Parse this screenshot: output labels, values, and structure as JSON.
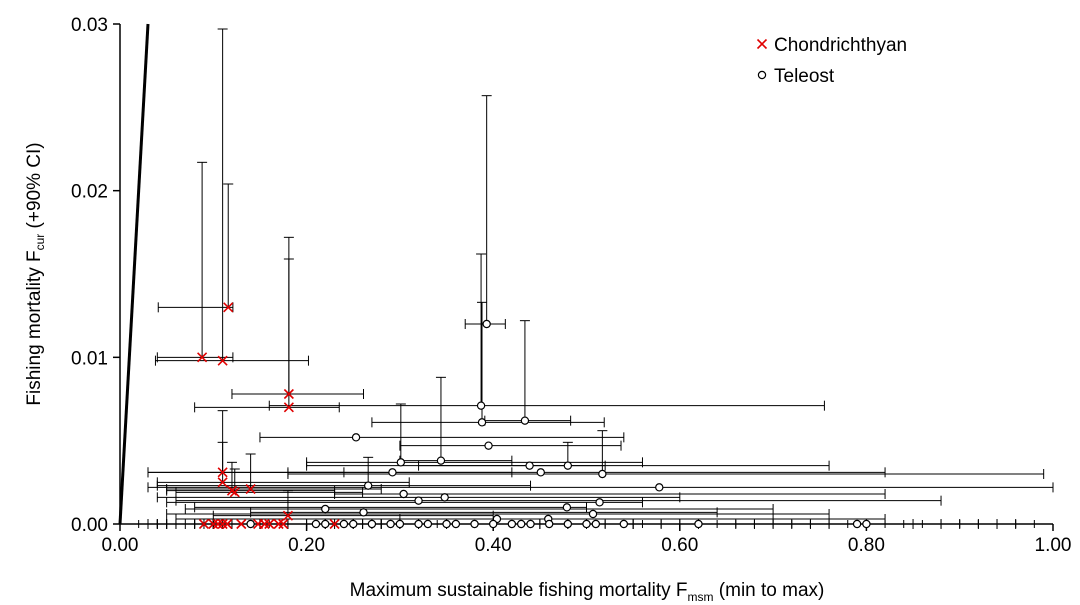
{
  "chart_data": {
    "type": "scatter",
    "xlabel_parts": [
      "Maximum sustainable fishing mortality F",
      "msm",
      " (min to max)"
    ],
    "ylabel_parts": [
      "Fishing mortality F",
      "cur",
      " (+90% CI)"
    ],
    "xlim": [
      0,
      1.0
    ],
    "ylim": [
      0,
      0.03
    ],
    "xticks": [
      {
        "value": 0,
        "label": "0.00"
      },
      {
        "value": 0.2,
        "label": "0.20"
      },
      {
        "value": 0.4,
        "label": "0.40"
      },
      {
        "value": 0.6,
        "label": "0.60"
      },
      {
        "value": 0.8,
        "label": "0.80"
      },
      {
        "value": 1.0,
        "label": "1.00"
      }
    ],
    "xminorticks": [
      0.02,
      0.04,
      0.06,
      0.08,
      0.1,
      0.12,
      0.14,
      0.16,
      0.18,
      0.22,
      0.24,
      0.26,
      0.28,
      0.3,
      0.32,
      0.34,
      0.36,
      0.38,
      0.42,
      0.44,
      0.46,
      0.48,
      0.5,
      0.52,
      0.54,
      0.56,
      0.58,
      0.62,
      0.64,
      0.66,
      0.68,
      0.7,
      0.72,
      0.74,
      0.76,
      0.78,
      0.82,
      0.84,
      0.86,
      0.88,
      0.9,
      0.92,
      0.94,
      0.96,
      0.98
    ],
    "yticks": [
      {
        "value": 0,
        "label": "0.00"
      },
      {
        "value": 0.01,
        "label": "0.01"
      },
      {
        "value": 0.02,
        "label": "0.02"
      },
      {
        "value": 0.03,
        "label": "0.03"
      }
    ],
    "reference_line": {
      "x": [
        0,
        0.03
      ],
      "y": [
        0,
        0.03
      ]
    },
    "legend": "upper right",
    "series": [
      {
        "name": "Chondrichthyan",
        "color": "#e00000",
        "marker": "x",
        "x": [
          0.116,
          0.088,
          0.11,
          0.181,
          0.181,
          0.11,
          0.11,
          0.12,
          0.123,
          0.14,
          0.18,
          0.09,
          0.1,
          0.105,
          0.11,
          0.115,
          0.13,
          0.148,
          0.155,
          0.16,
          0.17,
          0.175,
          0.23
        ],
        "values": [
          0.013,
          0.01,
          0.0098,
          0.0078,
          0.007,
          0.0031,
          0.0025,
          0.002,
          0.0019,
          0.0021,
          0.0005,
          0,
          0,
          0,
          0,
          0,
          0,
          0,
          0,
          0,
          0,
          0,
          0
        ],
        "xmin": [
          0.041,
          0.04,
          0.038,
          0.12,
          0.08,
          0.03,
          0.04,
          0.05,
          0.06,
          0.05,
          0.1,
          0.03,
          0.04,
          0.05,
          0.05,
          0.06,
          0.07,
          0.08,
          0.09,
          0.1,
          0.1,
          0.11,
          0.15
        ],
        "xmax": [
          0.121,
          0.121,
          0.202,
          0.261,
          0.235,
          0.24,
          0.31,
          0.23,
          0.26,
          0.28,
          0.4,
          0.15,
          0.18,
          0.2,
          0.22,
          0.23,
          0.25,
          0.26,
          0.27,
          0.28,
          0.3,
          0.32,
          0.4
        ],
        "yupper": [
          0.0204,
          0.0217,
          0.0297,
          0.0172,
          0.0159,
          0.0068,
          0.0049,
          0.0037,
          0.0033,
          0.0042,
          0.002,
          null,
          null,
          null,
          null,
          null,
          null,
          null,
          null,
          null,
          null,
          null,
          null
        ]
      },
      {
        "name": "Teleost",
        "color": "#000000",
        "marker": "circle",
        "x": [
          0.393,
          0.387,
          0.388,
          0.434,
          0.253,
          0.344,
          0.395,
          0.301,
          0.439,
          0.48,
          0.451,
          0.517,
          0.292,
          0.266,
          0.578,
          0.304,
          0.348,
          0.32,
          0.514,
          0.22,
          0.479,
          0.261,
          0.507,
          0.404,
          0.459,
          0.14,
          0.21,
          0.22,
          0.24,
          0.25,
          0.27,
          0.29,
          0.3,
          0.32,
          0.33,
          0.35,
          0.36,
          0.38,
          0.4,
          0.42,
          0.43,
          0.44,
          0.46,
          0.48,
          0.5,
          0.51,
          0.54,
          0.62,
          0.79,
          0.8
        ],
        "values": [
          0.012,
          0.0071,
          0.0061,
          0.0062,
          0.0052,
          0.0038,
          0.0047,
          0.0037,
          0.0035,
          0.0035,
          0.0031,
          0.003,
          0.0031,
          0.0023,
          0.0022,
          0.0018,
          0.0016,
          0.0014,
          0.0013,
          0.0009,
          0.001,
          0.0007,
          0.0006,
          0.0003,
          0.0003,
          0,
          0,
          0,
          0,
          0,
          0,
          0,
          0,
          0,
          0,
          0,
          0,
          0,
          0,
          0,
          0,
          0,
          0,
          0,
          0,
          0,
          0,
          0,
          0,
          0
        ],
        "xmin": [
          0.37,
          0.16,
          0.27,
          0.391,
          0.15,
          0.3,
          0.3,
          0.2,
          0.2,
          0.32,
          0.03,
          0.18,
          0.18,
          0.04,
          0.03,
          0.23,
          0.04,
          0.06,
          0.05,
          0.07,
          0.08,
          0.14,
          0.05,
          0.3,
          0.06,
          0.05,
          0.06,
          0.08,
          0.1,
          0.12,
          0.04,
          0.15,
          0.2,
          0.1,
          0.25,
          0.18,
          0.06,
          0.3,
          0.22,
          0.35,
          0.26,
          0.32,
          0.28,
          0.4,
          0.45,
          0.3,
          0.48,
          0.5,
          0.55,
          0.6
        ],
        "xmax": [
          0.413,
          0.755,
          0.519,
          0.483,
          0.54,
          0.42,
          0.537,
          0.56,
          0.76,
          0.52,
          0.82,
          0.99,
          0.42,
          0.44,
          1.0,
          0.82,
          0.6,
          0.88,
          0.56,
          0.7,
          0.5,
          0.64,
          0.76,
          0.7,
          0.82,
          0.28,
          0.35,
          0.4,
          0.45,
          0.5,
          0.55,
          0.6,
          0.52,
          0.66,
          0.48,
          0.7,
          0.58,
          0.74,
          0.62,
          0.8,
          0.55,
          0.68,
          0.72,
          0.76,
          0.85,
          0.9,
          0.88,
          0.94,
          0.92,
          0.96
        ],
        "yupper": [
          0.0257,
          0.0162,
          0.0133,
          0.0122,
          null,
          0.0088,
          null,
          0.0072,
          null,
          0.0049,
          null,
          0.0056,
          null,
          0.004,
          null,
          null,
          null,
          null,
          null,
          null,
          null,
          null,
          null,
          null,
          null,
          null,
          null,
          null,
          null,
          null,
          null,
          null,
          null,
          null,
          null,
          null,
          null,
          null,
          null,
          null,
          null,
          null,
          null,
          null,
          null,
          null,
          null,
          null,
          null,
          null
        ]
      }
    ]
  }
}
